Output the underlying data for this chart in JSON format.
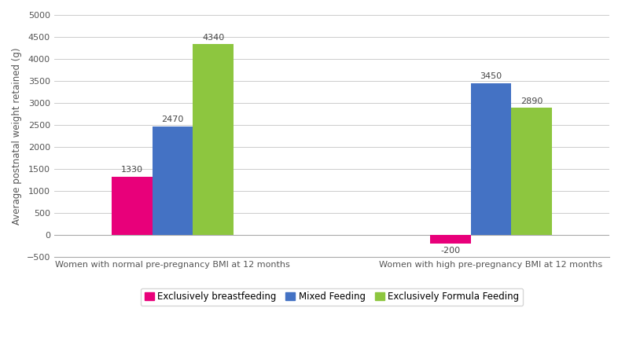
{
  "groups": [
    "Women with normal pre-pregnancy BMI at 12 months",
    "Women with high pre-pregnancy BMI at 12 months"
  ],
  "series": [
    {
      "name": "Exclusively breastfeeding",
      "values": [
        1330,
        -200
      ],
      "color": "#E8007A"
    },
    {
      "name": "Mixed Feeding",
      "values": [
        2470,
        3450
      ],
      "color": "#4472C4"
    },
    {
      "name": "Exclusively Formula Feeding",
      "values": [
        4340,
        2890
      ],
      "color": "#8DC63F"
    }
  ],
  "ylabel": "Average postnatal weight retained (g)",
  "ylim": [
    -500,
    5000
  ],
  "yticks": [
    -500,
    0,
    500,
    1000,
    1500,
    2000,
    2500,
    3000,
    3500,
    4000,
    4500,
    5000
  ],
  "background_color": "#FFFFFF",
  "grid_color": "#CCCCCC",
  "bar_width": 0.28,
  "label_fontsize": 8,
  "xlabel_fontsize": 8,
  "ylabel_fontsize": 8.5
}
